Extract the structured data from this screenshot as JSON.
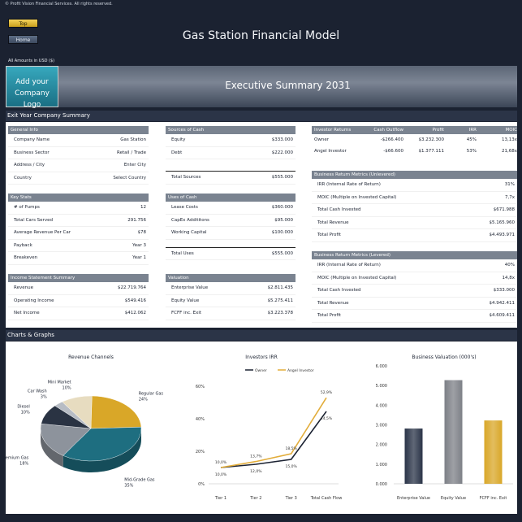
{
  "copyright": "© Profit Vision Financial Services. All rights reserved.",
  "nav": {
    "top": "Top",
    "home": "Home"
  },
  "app_title": "Gas Station Financial Model",
  "amounts_note": "All Amounts in  USD ($)",
  "logo": {
    "line1": "Add your",
    "line2": "Company Logo"
  },
  "exec_title": "Executive Summary 2031",
  "sections": {
    "exit": "Exit Year Company Summary",
    "charts": "Charts & Graphs"
  },
  "general_info": {
    "title": "General Info",
    "rows": [
      {
        "label": "Company Name",
        "value": "Gas Station"
      },
      {
        "label": "Business Sector",
        "value": "Retail / Trade"
      },
      {
        "label": "Address / City",
        "value": "Enter City"
      },
      {
        "label": "Country",
        "value": "Select Country"
      }
    ]
  },
  "key_stats": {
    "title": "Key Stats",
    "rows": [
      {
        "label": "# of Pumps",
        "value": "12"
      },
      {
        "label": "Total Cars Served",
        "value": "291.756"
      },
      {
        "label": "Average Revenue Per Car",
        "value": "$78"
      },
      {
        "label": "Payback",
        "value": "Year 3"
      },
      {
        "label": "Breakeven",
        "value": "Year 1"
      }
    ]
  },
  "income_summary": {
    "title": "Income Statement Summary",
    "rows": [
      {
        "label": "Revenue",
        "value": "$22.719.764"
      },
      {
        "label": "Operating Income",
        "value": "$549.416"
      },
      {
        "label": "Net Income",
        "value": "$412.062"
      }
    ]
  },
  "sources_of_cash": {
    "title": "Sources of Cash",
    "rows": [
      {
        "label": "Equity",
        "value": "$333.000"
      },
      {
        "label": "Debt",
        "value": "$222.000"
      }
    ],
    "total": {
      "label": "Total Sources",
      "value": "$555.000"
    }
  },
  "uses_of_cash": {
    "title": "Uses of Cash",
    "rows": [
      {
        "label": "Lease Costs",
        "value": "$360.000"
      },
      {
        "label": "CapEx Addititons",
        "value": "$95.000"
      },
      {
        "label": "Working Capital",
        "value": "$100.000"
      }
    ],
    "total": {
      "label": "Total Uses",
      "value": "$555.000"
    }
  },
  "valuation": {
    "title": "Valuation",
    "rows": [
      {
        "label": "Enterprise Value",
        "value": "$2.811.435"
      },
      {
        "label": "Equity Value",
        "value": "$5.275.411"
      },
      {
        "label": "FCFF inc. Exit",
        "value": "$3.223.378"
      }
    ]
  },
  "investor_returns": {
    "headers": [
      "Investor Returns",
      "Cash Outflow",
      "Profit",
      "IRR",
      "MOIC"
    ],
    "rows": [
      [
        "Owner",
        "-$266.400",
        "$3.232.300",
        "45%",
        "13,13x"
      ],
      [
        "Angel Investor",
        "-$66.600",
        "$1.377.111",
        "53%",
        "21,68x"
      ]
    ]
  },
  "unlevered": {
    "title": "Business Return Metrics (Unlevered)",
    "rows": [
      {
        "label": "IRR (Internal Rate of Return)",
        "value": "31%"
      },
      {
        "label": "MOIC (Multiple on Invested Capital)",
        "value": "7,7x"
      },
      {
        "label": "Total Cash Invested",
        "value": "$671.988"
      },
      {
        "label": "Total Revenue",
        "value": "$5.165.960"
      },
      {
        "label": "Total Profit",
        "value": "$4.493.971"
      }
    ]
  },
  "levered": {
    "title": "Business Return Metrics (Levered)",
    "rows": [
      {
        "label": "IRR (Internal Rate of Return)",
        "value": "40%"
      },
      {
        "label": "MOIC (Multiple on Invested Capital)",
        "value": "14,8x"
      },
      {
        "label": "Total Cash Invested",
        "value": "$333.000"
      },
      {
        "label": "Total Revenue",
        "value": "$4.942.411"
      },
      {
        "label": "Total Profit",
        "value": "$4.609.411"
      }
    ]
  },
  "chart_data": [
    {
      "type": "pie",
      "title": "Revenue Channels",
      "categories": [
        "Regular Gas",
        "Mid-Grade Gas",
        "Premium Gas",
        "Diesel",
        "Car Wash",
        "Mini Market"
      ],
      "labels": [
        "Regular Gas",
        "Mid-Grade Gas",
        "Premium Gas",
        "Diesel",
        "Car Wash",
        "Mini Market"
      ],
      "values": [
        24,
        35,
        18,
        10,
        3,
        10
      ],
      "value_labels": [
        "24%",
        "35%",
        "18%",
        "10%",
        "3%",
        "10%"
      ],
      "colors": [
        "#d9a728",
        "#1e6e80",
        "#8d939c",
        "#2a3343",
        "#b7bcc4",
        "#e7dcc0"
      ]
    },
    {
      "type": "line",
      "title": "Investors IRR",
      "categories": [
        "Tier 1",
        "Tier 2",
        "Tier 3",
        "Total Cash Flow"
      ],
      "series": [
        {
          "name": "Owner",
          "values": [
            10.0,
            12.0,
            15.0,
            44.5
          ],
          "labels": [
            "10,0%",
            "12,0%",
            "15,0%",
            "44,5%"
          ],
          "color": "#1c2333"
        },
        {
          "name": "Angel Investor",
          "values": [
            10.0,
            13.7,
            18.5,
            52.9
          ],
          "labels": [
            "10,0%",
            "13,7%",
            "18,5%",
            "52,9%"
          ],
          "color": "#e2ad3b"
        }
      ],
      "yticks": [
        "0%",
        "20%",
        "40%",
        "60%"
      ],
      "ylim": [
        0,
        60
      ],
      "legend": "top"
    },
    {
      "type": "bar",
      "title": "Business Valuation (000's)",
      "categories": [
        "Enterprise Value",
        "Equity Value",
        "FCFF inc. Exit"
      ],
      "values": [
        2811.435,
        5275.411,
        3223.378
      ],
      "colors": [
        "#2a3448",
        "#7d8087",
        "#d9a728"
      ],
      "yticks": [
        "0.000",
        "1.000",
        "2.000",
        "3.000",
        "4.000",
        "5.000",
        "6.000"
      ],
      "ylim": [
        0,
        6000
      ]
    }
  ]
}
